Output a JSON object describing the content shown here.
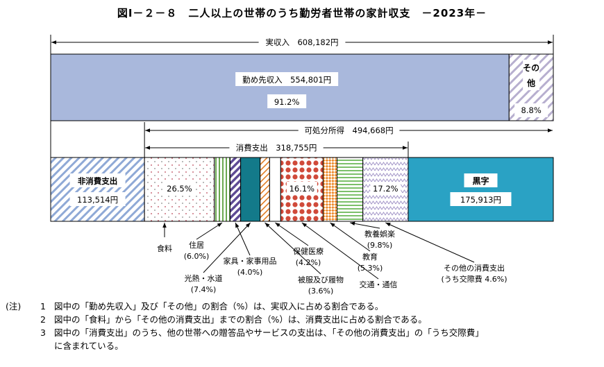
{
  "title": "図Ⅰ－２－８　二人以上の世帯のうち勤労者世帯の家計収支　－2023年－",
  "chart_data": {
    "type": "bar",
    "unit": "円",
    "spans": {
      "income": {
        "label": "実収入",
        "value_label": "608,182円",
        "value": 608182
      },
      "disposable": {
        "label": "可処分所得",
        "value_label": "494,668円",
        "value": 494668
      },
      "consumption": {
        "label": "消費支出",
        "value_label": "318,755円",
        "value": 318755
      }
    },
    "income_bar": [
      {
        "key": "wage",
        "label": "勤め先収入",
        "value_label": "554,801円",
        "value": 554801,
        "pct_label": "91.2%",
        "pct": 91.2,
        "color": "#a9b8dc"
      },
      {
        "key": "other",
        "label_lines": [
          "その",
          "他"
        ],
        "pct_label": "8.8%",
        "pct": 8.8,
        "color": "#b9aed3"
      }
    ],
    "expense_bar": [
      {
        "key": "nonconsumption",
        "label": "非消費支出",
        "value_label": "113,514円",
        "value": 113514,
        "pattern": "hatch-blue"
      },
      {
        "key": "food",
        "label": "食料",
        "pct": 26.5,
        "inner_label": "26.5%",
        "pattern": "dots"
      },
      {
        "key": "housing",
        "label": "住居",
        "pct": 6.0,
        "pct_label": "(6.0%)",
        "pattern": "vstripe-green"
      },
      {
        "key": "furniture",
        "label": "家具・家事用品",
        "pct": 4.0,
        "pct_label": "(4.0%)",
        "pattern": "hatch-purple"
      },
      {
        "key": "utilities",
        "label": "光熱・水道",
        "pct": 7.4,
        "pct_label": "(7.4%)",
        "pattern": "solid-teal"
      },
      {
        "key": "clothing",
        "label": "被服及び履物",
        "pct": 3.6,
        "pct_label": "(3.6%)",
        "pattern": "hatch-orange"
      },
      {
        "key": "medical",
        "label": "保健医療",
        "pct": 4.2,
        "pct_label": "(4.2%)",
        "pattern": "plain"
      },
      {
        "key": "transport",
        "label": "交通・通信",
        "pct": 16.1,
        "inner_label": "16.1%",
        "pattern": "circles-red"
      },
      {
        "key": "education",
        "label": "教育",
        "pct": 5.3,
        "pct_label": "(5.3%)",
        "pattern": "checker-orange"
      },
      {
        "key": "recreation",
        "label": "教養娯楽",
        "pct": 9.8,
        "pct_label": "(9.8%)",
        "pattern": "hstripe-green"
      },
      {
        "key": "othercons",
        "label": "その他の消費支出",
        "sub_label": "(うち交際費 4.6%)",
        "pct": 17.2,
        "inner_label": "17.2%",
        "pattern": "zigzag-purple"
      },
      {
        "key": "surplus",
        "label": "黒字",
        "value_label": "175,913円",
        "value": 175913,
        "color": "#2aa2c4"
      }
    ],
    "colors": {
      "wage": "#a9b8dc",
      "surplus": "#2aa2c4",
      "teal": "#137a8a",
      "red": "#c0392b",
      "orange": "#e07a1f",
      "green": "#4a9a3a",
      "purple": "#6d4f9c",
      "blue": "#6a8fc6"
    }
  },
  "notes": {
    "head": "(注)",
    "items": [
      {
        "num": "1",
        "text": "図中の「勤め先収入」及び「その他」の割合（%）は、実収入に占める割合である。"
      },
      {
        "num": "2",
        "text": "図中の「食料」から「その他の消費支出」までの割合（%）は、消費支出に占める割合である。"
      },
      {
        "num": "3",
        "text": "図中の「消費支出」のうち、他の世帯への贈答品やサービスの支出は、「その他の消費支出」の「うち交際費」"
      },
      {
        "num": "",
        "text": "に含まれている。"
      }
    ]
  }
}
